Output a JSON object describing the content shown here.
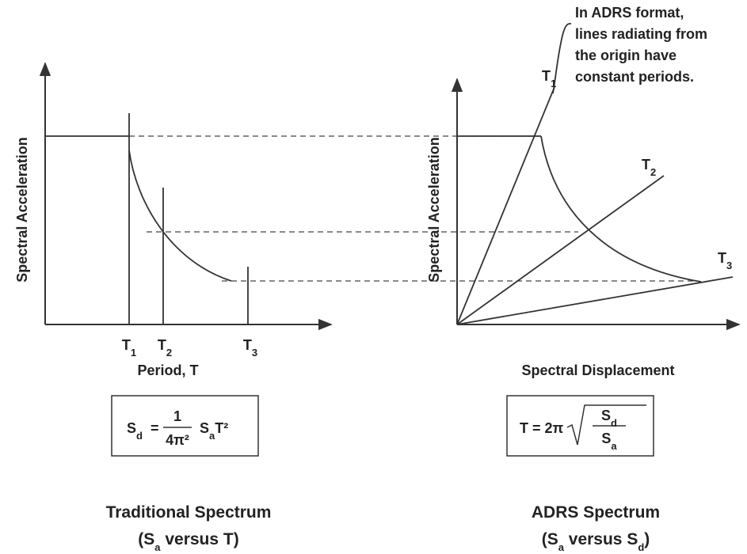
{
  "left_panel": {
    "y_axis_label": "Spectral Acceleration",
    "x_axis_label": "Period, T",
    "period_labels": [
      {
        "base": "T",
        "sub": "1"
      },
      {
        "base": "T",
        "sub": "2"
      },
      {
        "base": "T",
        "sub": "3"
      }
    ],
    "formula": {
      "lhs": {
        "base": "S",
        "sub": "d"
      },
      "eq": "=",
      "num": "1",
      "den": "4π²",
      "rhs": {
        "base": "S",
        "sub": "a"
      },
      "tail": "T²"
    },
    "caption": {
      "title": "Traditional Spectrum",
      "pre": "(S",
      "sub": "a",
      "post": " versus T)"
    }
  },
  "right_panel": {
    "annotation": [
      "In ADRS format,",
      "lines radiating from",
      "the origin have",
      "constant periods."
    ],
    "y_axis_label": "Spectral Acceleration",
    "x_axis_label": "Spectral Displacement",
    "period_labels": [
      {
        "base": "T",
        "sub": "1"
      },
      {
        "base": "T",
        "sub": "2"
      },
      {
        "base": "T",
        "sub": "3"
      }
    ],
    "formula": {
      "lhs": "T = 2π",
      "num": {
        "base": "S",
        "sub": "d"
      },
      "den": {
        "base": "S",
        "sub": "a"
      }
    },
    "caption": {
      "title": "ADRS Spectrum",
      "pre": "(S",
      "sub": "a",
      "mid": " versus S",
      "sub2": "d",
      "post": ")"
    }
  }
}
